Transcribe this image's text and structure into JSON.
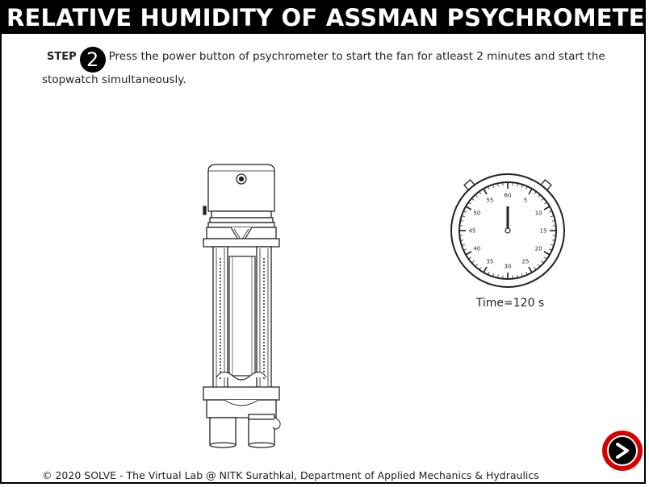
{
  "header": {
    "title": "RELATIVE HUMIDITY OF ASSMAN PSYCHROMETER"
  },
  "step": {
    "label": "STEP",
    "number": "2",
    "instruction": "Press the power button of psychrometer to start the fan for atleast 2 minutes and start the stopwatch simultaneously."
  },
  "stopwatch": {
    "dial_numbers": [
      "60",
      "5",
      "10",
      "15",
      "20",
      "25",
      "30",
      "35",
      "40",
      "45",
      "50",
      "55"
    ],
    "hand_seconds": 60
  },
  "time_readout": "Time=120 s",
  "footer": {
    "copyright": "© 2020 SOLVE - The Virtual Lab @ NITK Surathkal, Department of Applied Mechanics & Hydraulics"
  },
  "icons": {
    "next": "arrow-right-icon",
    "power": "power-button-icon"
  },
  "colors": {
    "accent": "#d50000",
    "header_bg": "#000000",
    "header_fg": "#ffffff"
  }
}
